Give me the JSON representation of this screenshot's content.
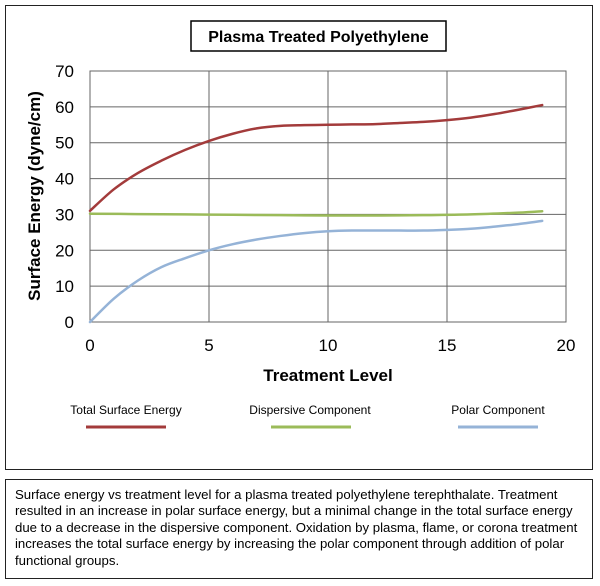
{
  "caption": "Surface energy vs treatment level for a plasma treated polyethylene terephthalate. Treatment resulted in an increase in polar surface energy, but a minimal change in the total surface energy due to a decrease in the dispersive component. Oxidation by plasma, flame, or corona treatment increases the total surface energy by increasing the polar component through addition of polar functional groups.",
  "chart_data": {
    "type": "line",
    "title": "Plasma Treated Polyethylene",
    "xlabel": "Treatment Level",
    "ylabel": "Surface Energy (dyne/cm)",
    "xlim": [
      0,
      20
    ],
    "ylim": [
      0,
      70
    ],
    "xticks": [
      0,
      5,
      10,
      15,
      20
    ],
    "yticks": [
      0,
      10,
      20,
      30,
      40,
      50,
      60,
      70
    ],
    "grid": true,
    "legend_position": "bottom",
    "series": [
      {
        "name": "Total Surface Energy",
        "color": "#a33b3b",
        "x": [
          0,
          1,
          2,
          3,
          4,
          5,
          6,
          7,
          8,
          9,
          10,
          11,
          12,
          13,
          14,
          15,
          16,
          17,
          18,
          19
        ],
        "y": [
          31,
          37,
          41.5,
          45,
          48,
          50.5,
          52.5,
          54,
          54.7,
          54.9,
          55,
          55.1,
          55.2,
          55.5,
          55.8,
          56.3,
          57,
          58,
          59.2,
          60.5
        ]
      },
      {
        "name": "Dispersive Component",
        "color": "#9bbb59",
        "x": [
          0,
          2,
          4,
          6,
          8,
          10,
          12,
          14,
          16,
          18,
          19
        ],
        "y": [
          30.2,
          30.1,
          30,
          29.9,
          29.8,
          29.7,
          29.7,
          29.8,
          30,
          30.5,
          30.9
        ]
      },
      {
        "name": "Polar Component",
        "color": "#95b3d7",
        "x": [
          0,
          1,
          2,
          3,
          4,
          5,
          6,
          7,
          8,
          9,
          10,
          11,
          12,
          13,
          14,
          15,
          16,
          17,
          18,
          19
        ],
        "y": [
          0,
          6.5,
          11.5,
          15.3,
          17.8,
          20,
          21.7,
          23,
          24,
          24.8,
          25.3,
          25.5,
          25.5,
          25.5,
          25.5,
          25.7,
          26,
          26.6,
          27.3,
          28.2
        ]
      }
    ]
  }
}
